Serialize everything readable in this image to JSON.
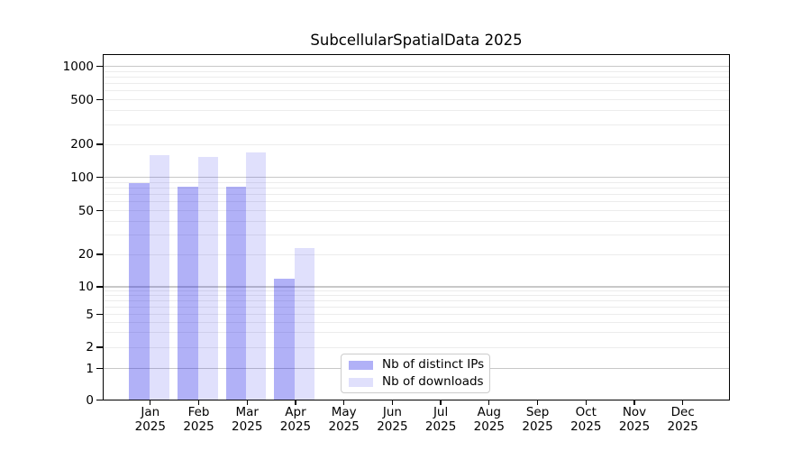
{
  "title": "SubcellularSpatialData 2025",
  "legend": {
    "items": [
      {
        "label": "Nb of distinct IPs"
      },
      {
        "label": "Nb of downloads"
      }
    ]
  },
  "colors": {
    "distinct_ips": "rgba(32,32,232,0.35)",
    "downloads": "rgba(32,32,232,0.14)",
    "grid_major": "#c8c8c8",
    "grid_minor": "#ececec",
    "spine": "#000000",
    "text": "#000000",
    "legend_border": "#cccccc"
  },
  "x_axis": {
    "months": [
      "Jan",
      "Feb",
      "Mar",
      "Apr",
      "May",
      "Jun",
      "Jul",
      "Aug",
      "Sep",
      "Oct",
      "Nov",
      "Dec"
    ],
    "year": "2025"
  },
  "y_axis": {
    "ticks": [
      0,
      1,
      2,
      5,
      10,
      20,
      50,
      100,
      200,
      500,
      1000
    ]
  },
  "chart_data": {
    "type": "bar",
    "title": "SubcellularSpatialData 2025",
    "categories": [
      "Jan 2025",
      "Feb 2025",
      "Mar 2025",
      "Apr 2025",
      "May 2025",
      "Jun 2025",
      "Jul 2025",
      "Aug 2025",
      "Sep 2025",
      "Oct 2025",
      "Nov 2025",
      "Dec 2025"
    ],
    "series": [
      {
        "name": "Nb of distinct IPs",
        "values": [
          88,
          82,
          82,
          12,
          0,
          0,
          0,
          0,
          0,
          0,
          0,
          0
        ]
      },
      {
        "name": "Nb of downloads",
        "values": [
          158,
          152,
          168,
          23,
          0,
          0,
          0,
          0,
          0,
          0,
          0,
          0
        ]
      }
    ],
    "y_scale": "symlog",
    "y_ticks": [
      0,
      1,
      2,
      5,
      10,
      20,
      50,
      100,
      200,
      500,
      1000
    ],
    "ylim": [
      0,
      1400
    ],
    "xlabel": "",
    "ylabel": "",
    "grid": "horizontal major+minor",
    "legend_position": "lower center"
  }
}
